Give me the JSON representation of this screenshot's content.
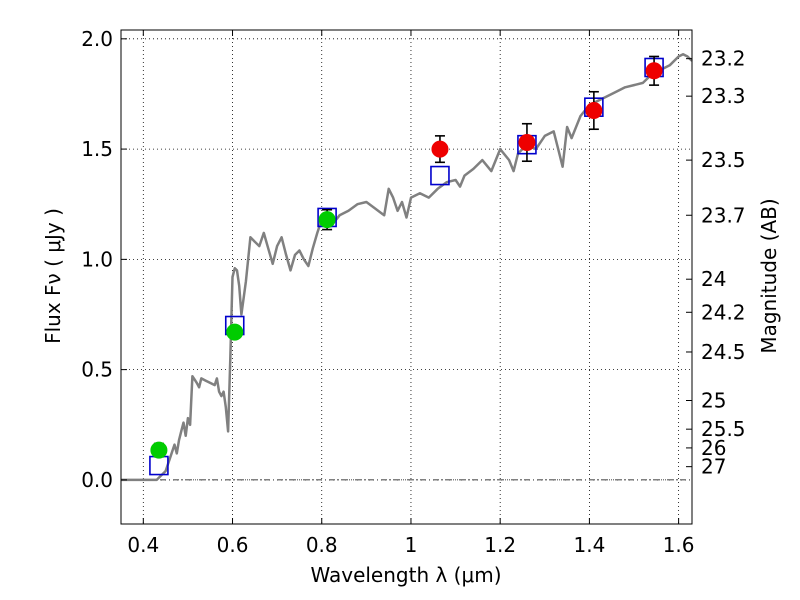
{
  "chart_data": {
    "type": "scatter",
    "title": "",
    "xlabel": "Wavelength  λ (μm)",
    "ylabel": "Flux  Fν  ( μJy )",
    "right_ylabel": "Magnitude (AB)",
    "xlim": [
      0.35,
      1.63
    ],
    "ylim": [
      -0.2,
      2.04
    ],
    "grid": true,
    "x_ticks": [
      {
        "value": 0.4,
        "label": "0.4"
      },
      {
        "value": 0.6,
        "label": "0.6"
      },
      {
        "value": 0.8,
        "label": "0.8"
      },
      {
        "value": 1.0,
        "label": "1"
      },
      {
        "value": 1.2,
        "label": "1.2"
      },
      {
        "value": 1.4,
        "label": "1.4"
      },
      {
        "value": 1.6,
        "label": "1.6"
      }
    ],
    "y_ticks": [
      {
        "value": 0.0,
        "label": "0.0"
      },
      {
        "value": 0.5,
        "label": "0.5"
      },
      {
        "value": 1.0,
        "label": "1.0"
      },
      {
        "value": 1.5,
        "label": "1.5"
      },
      {
        "value": 2.0,
        "label": "2.0"
      }
    ],
    "mag_ticks": [
      {
        "label": "23.2",
        "flux": 1.91
      },
      {
        "label": "23.3",
        "flux": 1.74
      },
      {
        "label": "23.5",
        "flux": 1.45
      },
      {
        "label": "23.7",
        "flux": 1.2
      },
      {
        "label": "24",
        "flux": 0.91
      },
      {
        "label": "24.2",
        "flux": 0.76
      },
      {
        "label": "24.5",
        "flux": 0.58
      },
      {
        "label": "25",
        "flux": 0.36
      },
      {
        "label": "25.5",
        "flux": 0.23
      },
      {
        "label": "26",
        "flux": 0.145
      },
      {
        "label": "27",
        "flux": 0.06
      }
    ],
    "zero_line": 0,
    "series": [
      {
        "name": "model_spectrum",
        "kind": "line",
        "color": "#808080",
        "x": [
          0.35,
          0.37,
          0.39,
          0.41,
          0.42,
          0.43,
          0.44,
          0.45,
          0.46,
          0.47,
          0.475,
          0.48,
          0.485,
          0.49,
          0.495,
          0.5,
          0.505,
          0.51,
          0.52,
          0.525,
          0.53,
          0.54,
          0.55,
          0.56,
          0.565,
          0.57,
          0.575,
          0.58,
          0.585,
          0.59,
          0.595,
          0.6,
          0.605,
          0.61,
          0.615,
          0.62,
          0.63,
          0.64,
          0.65,
          0.66,
          0.67,
          0.68,
          0.69,
          0.7,
          0.71,
          0.72,
          0.73,
          0.74,
          0.75,
          0.76,
          0.77,
          0.78,
          0.79,
          0.8,
          0.82,
          0.84,
          0.86,
          0.88,
          0.9,
          0.92,
          0.94,
          0.95,
          0.96,
          0.97,
          0.98,
          0.99,
          1.0,
          1.02,
          1.04,
          1.06,
          1.08,
          1.1,
          1.11,
          1.12,
          1.14,
          1.16,
          1.18,
          1.2,
          1.22,
          1.23,
          1.24,
          1.26,
          1.28,
          1.3,
          1.32,
          1.33,
          1.34,
          1.35,
          1.36,
          1.38,
          1.4,
          1.42,
          1.44,
          1.46,
          1.48,
          1.5,
          1.52,
          1.54,
          1.56,
          1.58,
          1.6,
          1.61,
          1.62,
          1.63
        ],
        "y": [
          0.0,
          0.0,
          0.0,
          0.0,
          0.0,
          0.0,
          0.02,
          0.04,
          0.1,
          0.16,
          0.12,
          0.18,
          0.22,
          0.26,
          0.2,
          0.28,
          0.25,
          0.47,
          0.44,
          0.42,
          0.46,
          0.45,
          0.44,
          0.43,
          0.46,
          0.4,
          0.38,
          0.4,
          0.33,
          0.22,
          0.55,
          0.92,
          0.96,
          0.95,
          0.88,
          0.75,
          0.9,
          1.1,
          1.08,
          1.06,
          1.12,
          1.05,
          0.98,
          1.06,
          1.1,
          1.02,
          0.95,
          1.02,
          1.04,
          1.0,
          0.97,
          1.05,
          1.12,
          1.18,
          1.15,
          1.2,
          1.22,
          1.25,
          1.26,
          1.23,
          1.2,
          1.32,
          1.28,
          1.22,
          1.26,
          1.19,
          1.28,
          1.3,
          1.28,
          1.32,
          1.35,
          1.36,
          1.33,
          1.38,
          1.41,
          1.45,
          1.4,
          1.5,
          1.45,
          1.4,
          1.48,
          1.52,
          1.5,
          1.56,
          1.58,
          1.5,
          1.42,
          1.6,
          1.55,
          1.65,
          1.7,
          1.72,
          1.74,
          1.76,
          1.78,
          1.79,
          1.8,
          1.84,
          1.86,
          1.88,
          1.92,
          1.93,
          1.92,
          1.9
        ]
      },
      {
        "name": "model_photometry",
        "kind": "open_square",
        "color": "#0000cc",
        "x": [
          0.435,
          0.605,
          0.812,
          1.065,
          1.26,
          1.41,
          1.545
        ],
        "y": [
          0.065,
          0.7,
          1.19,
          1.38,
          1.52,
          1.69,
          1.87
        ]
      },
      {
        "name": "observed_optical",
        "kind": "filled_circle",
        "color": "#00cc00",
        "x": [
          0.435,
          0.605,
          0.812
        ],
        "y": [
          0.135,
          0.67,
          1.18
        ],
        "yerr": [
          0.03,
          0.02,
          0.045
        ]
      },
      {
        "name": "observed_nir",
        "kind": "filled_circle",
        "color": "#ee0000",
        "x": [
          1.065,
          1.26,
          1.41,
          1.545
        ],
        "y": [
          1.5,
          1.53,
          1.675,
          1.855
        ],
        "yerr": [
          0.06,
          0.085,
          0.085,
          0.065
        ]
      }
    ]
  }
}
